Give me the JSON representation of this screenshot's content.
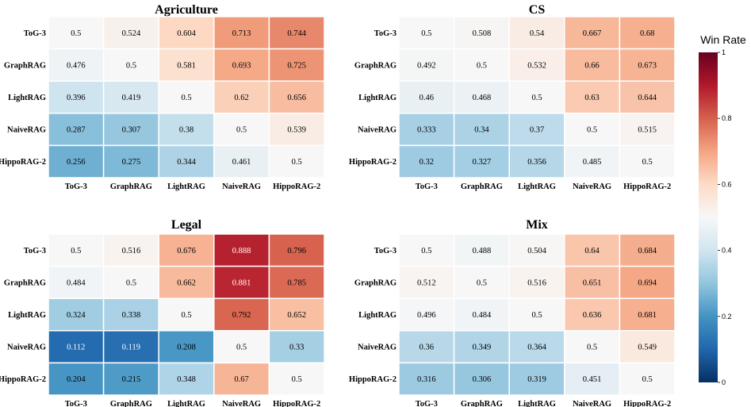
{
  "chart_data": {
    "type": "heatmap",
    "colorbar": {
      "title": "Win Rate",
      "range": [
        0,
        1
      ],
      "ticks": [
        "0",
        "0.2",
        "0.4",
        "0.6",
        "0.8",
        "1"
      ],
      "colormap": "RdBu_r"
    },
    "panels": [
      {
        "title": "Agriculture",
        "rows": [
          "ToG-3",
          "GraphRAG",
          "LightRAG",
          "NaiveRAG",
          "HippoRAG-2"
        ],
        "cols": [
          "ToG-3",
          "GraphRAG",
          "LightRAG",
          "NaiveRAG",
          "HippoRAG-2"
        ],
        "values": [
          [
            0.5,
            0.524,
            0.604,
            0.713,
            0.744
          ],
          [
            0.476,
            0.5,
            0.581,
            0.693,
            0.725
          ],
          [
            0.396,
            0.419,
            0.5,
            0.62,
            0.656
          ],
          [
            0.287,
            0.307,
            0.38,
            0.5,
            0.539
          ],
          [
            0.256,
            0.275,
            0.344,
            0.461,
            0.5
          ]
        ]
      },
      {
        "title": "CS",
        "rows": [
          "ToG-3",
          "GraphRAG",
          "LightRAG",
          "NaiveRAG",
          "HippoRAG-2"
        ],
        "cols": [
          "ToG-3",
          "GraphRAG",
          "LightRAG",
          "NaiveRAG",
          "HippoRAG-2"
        ],
        "values": [
          [
            0.5,
            0.508,
            0.54,
            0.667,
            0.68
          ],
          [
            0.492,
            0.5,
            0.532,
            0.66,
            0.673
          ],
          [
            0.46,
            0.468,
            0.5,
            0.63,
            0.644
          ],
          [
            0.333,
            0.34,
            0.37,
            0.5,
            0.515
          ],
          [
            0.32,
            0.327,
            0.356,
            0.485,
            0.5
          ]
        ]
      },
      {
        "title": "Legal",
        "rows": [
          "ToG-3",
          "GraphRAG",
          "LightRAG",
          "NaiveRAG",
          "HippoRAG-2"
        ],
        "cols": [
          "ToG-3",
          "GraphRAG",
          "LightRAG",
          "NaiveRAG",
          "HippoRAG-2"
        ],
        "values": [
          [
            0.5,
            0.516,
            0.676,
            0.888,
            0.796
          ],
          [
            0.484,
            0.5,
            0.662,
            0.881,
            0.785
          ],
          [
            0.324,
            0.338,
            0.5,
            0.792,
            0.652
          ],
          [
            0.112,
            0.119,
            0.208,
            0.5,
            0.33
          ],
          [
            0.204,
            0.215,
            0.348,
            0.67,
            0.5
          ]
        ]
      },
      {
        "title": "Mix",
        "rows": [
          "ToG-3",
          "GraphRAG",
          "LightRAG",
          "NaiveRAG",
          "HippoRAG-2"
        ],
        "cols": [
          "ToG-3",
          "GraphRAG",
          "LightRAG",
          "NaiveRAG",
          "HippoRAG-2"
        ],
        "values": [
          [
            0.5,
            0.488,
            0.504,
            0.64,
            0.684
          ],
          [
            0.512,
            0.5,
            0.516,
            0.651,
            0.694
          ],
          [
            0.496,
            0.484,
            0.5,
            0.636,
            0.681
          ],
          [
            0.36,
            0.349,
            0.364,
            0.5,
            0.549
          ],
          [
            0.316,
            0.306,
            0.319,
            0.451,
            0.5
          ]
        ]
      }
    ]
  }
}
